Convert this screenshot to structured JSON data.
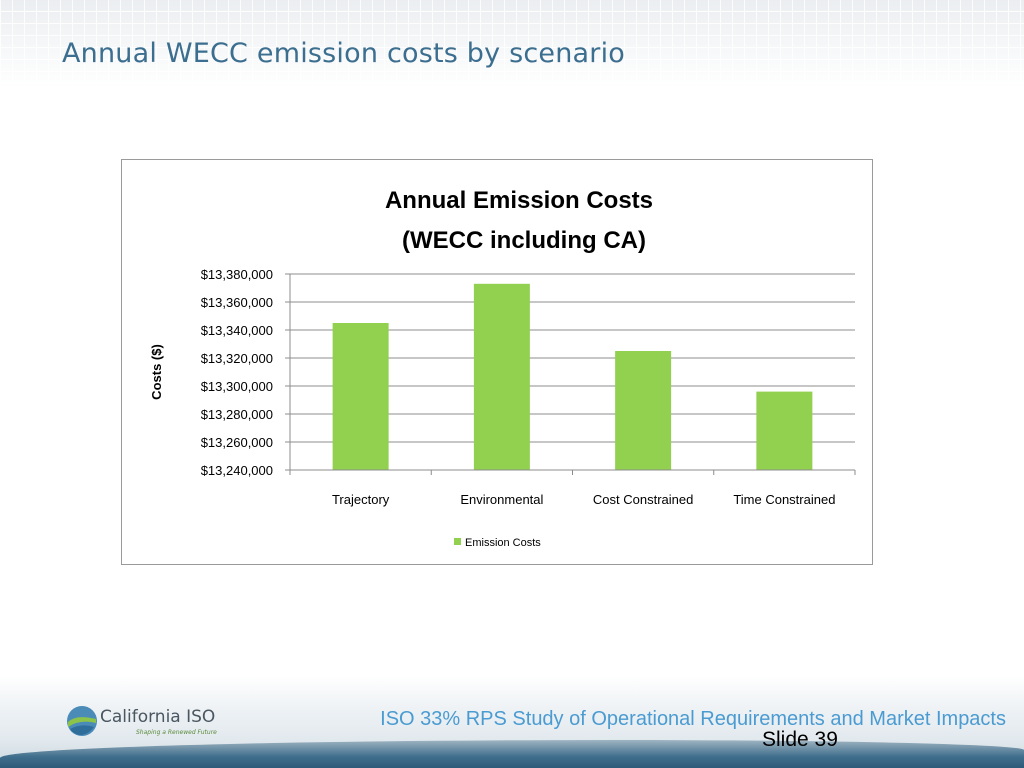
{
  "slide": {
    "title": "Annual WECC emission costs by scenario",
    "footer_text": "ISO 33% RPS Study of Operational Requirements and Market Impacts",
    "slide_number": "Slide 39",
    "logo_text": "California ISO",
    "logo_tagline": "Shaping a Renewed Future"
  },
  "colors": {
    "title": "#3b6e8f",
    "bar": "#92d050",
    "grid": "#7f7f7f",
    "footer_text": "#4a9bd1"
  },
  "chart_data": {
    "type": "bar",
    "title": "Annual Emission Costs",
    "subtitle": "(WECC including CA)",
    "ylabel": "Costs ($)",
    "xlabel": "",
    "categories": [
      "Trajectory",
      "Environmental",
      "Cost Constrained",
      "Time Constrained"
    ],
    "series": [
      {
        "name": "Emission Costs",
        "values": [
          13345000,
          13373000,
          13325000,
          13296000
        ]
      }
    ],
    "ylim": [
      13240000,
      13380000
    ],
    "yticks": [
      13240000,
      13260000,
      13280000,
      13300000,
      13320000,
      13340000,
      13360000,
      13380000
    ],
    "ytick_labels": [
      "$13,240,000",
      "$13,260,000",
      "$13,280,000",
      "$13,300,000",
      "$13,320,000",
      "$13,340,000",
      "$13,360,000",
      "$13,380,000"
    ],
    "grid": true,
    "legend_position": "bottom"
  }
}
